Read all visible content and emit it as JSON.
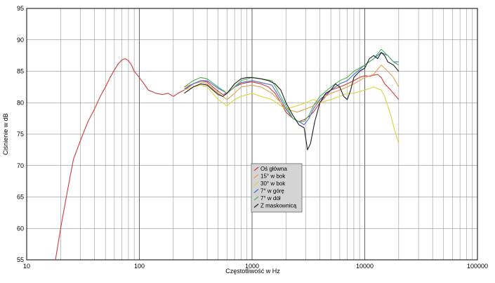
{
  "chart_data": {
    "type": "line",
    "xlabel": "Częstotliwość w Hz",
    "ylabel": "Ciśnienie w dB",
    "x_scale": "log",
    "xlim": [
      10,
      100000
    ],
    "ylim": [
      55,
      95
    ],
    "grid": true,
    "legend_placement": "center",
    "x_tick_labels": [
      "10",
      "100",
      "1000",
      "10000",
      "100000"
    ],
    "x_tick_values": [
      10,
      100,
      1000,
      10000,
      100000
    ],
    "y_ticks": [
      55,
      60,
      65,
      70,
      75,
      80,
      85,
      90,
      95
    ],
    "series": [
      {
        "name": "Oś główna",
        "color": "#d03a3a",
        "points": [
          [
            18,
            55
          ],
          [
            20,
            60
          ],
          [
            23,
            66
          ],
          [
            26,
            71
          ],
          [
            30,
            74
          ],
          [
            35,
            77
          ],
          [
            40,
            79
          ],
          [
            45,
            81
          ],
          [
            50,
            82.5
          ],
          [
            55,
            84
          ],
          [
            60,
            85.2
          ],
          [
            65,
            86.2
          ],
          [
            70,
            86.8
          ],
          [
            75,
            87
          ],
          [
            80,
            86.7
          ],
          [
            85,
            86
          ],
          [
            90,
            85
          ],
          [
            95,
            84.5
          ],
          [
            100,
            84
          ],
          [
            110,
            83
          ],
          [
            120,
            82
          ],
          [
            140,
            81.5
          ],
          [
            160,
            81.3
          ],
          [
            180,
            81.5
          ],
          [
            200,
            81
          ],
          [
            220,
            81.5
          ],
          [
            250,
            82
          ],
          [
            300,
            83
          ],
          [
            350,
            83.5
          ],
          [
            400,
            83.3
          ],
          [
            450,
            82.5
          ],
          [
            500,
            81.8
          ],
          [
            550,
            81.3
          ],
          [
            600,
            81.5
          ],
          [
            700,
            82.5
          ],
          [
            800,
            83
          ],
          [
            900,
            83.2
          ],
          [
            1000,
            83.3
          ],
          [
            1200,
            83
          ],
          [
            1400,
            82.5
          ],
          [
            1600,
            81.5
          ],
          [
            1800,
            80
          ],
          [
            2000,
            78.5
          ],
          [
            2300,
            77.5
          ],
          [
            2600,
            77
          ],
          [
            2900,
            77.3
          ],
          [
            3200,
            77.8
          ],
          [
            3500,
            78.5
          ],
          [
            4000,
            80
          ],
          [
            4500,
            81
          ],
          [
            5000,
            82
          ],
          [
            6000,
            82.5
          ],
          [
            7000,
            83
          ],
          [
            8000,
            83.5
          ],
          [
            9000,
            84
          ],
          [
            10000,
            84.3
          ],
          [
            11000,
            84.2
          ],
          [
            12000,
            84.4
          ],
          [
            13000,
            84.5
          ],
          [
            14000,
            84
          ],
          [
            15000,
            83
          ],
          [
            17000,
            82
          ],
          [
            20000,
            80.5
          ]
        ]
      },
      {
        "name": "15° w bok",
        "color": "#e8a050",
        "points": [
          [
            250,
            82.5
          ],
          [
            300,
            83
          ],
          [
            350,
            83.3
          ],
          [
            400,
            83
          ],
          [
            500,
            81.5
          ],
          [
            600,
            80.5
          ],
          [
            700,
            81.5
          ],
          [
            800,
            82.5
          ],
          [
            1000,
            82.8
          ],
          [
            1200,
            82.5
          ],
          [
            1500,
            81.5
          ],
          [
            1800,
            80
          ],
          [
            2000,
            79
          ],
          [
            2500,
            78.5
          ],
          [
            3000,
            79
          ],
          [
            3500,
            79.5
          ],
          [
            4000,
            80.5
          ],
          [
            5000,
            81.5
          ],
          [
            6000,
            82
          ],
          [
            7000,
            82.5
          ],
          [
            8000,
            83
          ],
          [
            10000,
            84
          ],
          [
            12000,
            84.5
          ],
          [
            14000,
            86
          ],
          [
            16000,
            85
          ],
          [
            18000,
            84
          ],
          [
            20000,
            82.5
          ]
        ]
      },
      {
        "name": "30° w bok",
        "color": "#d8d840",
        "points": [
          [
            250,
            82
          ],
          [
            300,
            82.5
          ],
          [
            350,
            82.8
          ],
          [
            400,
            82.5
          ],
          [
            500,
            80.5
          ],
          [
            600,
            79.5
          ],
          [
            700,
            80.5
          ],
          [
            800,
            81
          ],
          [
            1000,
            81.5
          ],
          [
            1200,
            81
          ],
          [
            1500,
            80.5
          ],
          [
            1800,
            79.5
          ],
          [
            2000,
            79
          ],
          [
            2500,
            79.5
          ],
          [
            3000,
            80
          ],
          [
            3500,
            80.5
          ],
          [
            4000,
            80
          ],
          [
            5000,
            80.5
          ],
          [
            6000,
            81
          ],
          [
            7000,
            81.5
          ],
          [
            8000,
            81.5
          ],
          [
            10000,
            82
          ],
          [
            12000,
            82.5
          ],
          [
            14000,
            82
          ],
          [
            15000,
            81
          ],
          [
            17000,
            78
          ],
          [
            18500,
            75.5
          ],
          [
            20000,
            73.5
          ]
        ]
      },
      {
        "name": "7° w górę",
        "color": "#4a6fd0",
        "points": [
          [
            250,
            82.2
          ],
          [
            300,
            83
          ],
          [
            350,
            83.5
          ],
          [
            400,
            83.5
          ],
          [
            500,
            82.3
          ],
          [
            600,
            81.5
          ],
          [
            700,
            82.5
          ],
          [
            800,
            83.2
          ],
          [
            1000,
            83.5
          ],
          [
            1200,
            83.2
          ],
          [
            1500,
            82.8
          ],
          [
            1800,
            80.5
          ],
          [
            2000,
            79
          ],
          [
            2300,
            77.5
          ],
          [
            2600,
            77
          ],
          [
            2900,
            76.5
          ],
          [
            3200,
            77.5
          ],
          [
            3500,
            79
          ],
          [
            4000,
            80.5
          ],
          [
            5000,
            82
          ],
          [
            6000,
            83
          ],
          [
            7000,
            83.5
          ],
          [
            8000,
            84.5
          ],
          [
            10000,
            86
          ],
          [
            12000,
            87
          ],
          [
            14000,
            88
          ],
          [
            16000,
            87.5
          ],
          [
            18000,
            86.5
          ],
          [
            20000,
            86.5
          ]
        ]
      },
      {
        "name": "7° w dół",
        "color": "#50b050",
        "points": [
          [
            250,
            82.5
          ],
          [
            300,
            83.5
          ],
          [
            350,
            84
          ],
          [
            400,
            83.8
          ],
          [
            500,
            82.5
          ],
          [
            600,
            81.5
          ],
          [
            700,
            82.5
          ],
          [
            800,
            83.5
          ],
          [
            1000,
            84
          ],
          [
            1200,
            83.8
          ],
          [
            1500,
            83.5
          ],
          [
            1800,
            81
          ],
          [
            2000,
            79.5
          ],
          [
            2300,
            77.5
          ],
          [
            2600,
            77
          ],
          [
            2900,
            77
          ],
          [
            3200,
            78
          ],
          [
            3500,
            79.5
          ],
          [
            4000,
            81
          ],
          [
            5000,
            82.5
          ],
          [
            6000,
            83.5
          ],
          [
            7000,
            84
          ],
          [
            8000,
            85
          ],
          [
            10000,
            86
          ],
          [
            12000,
            87
          ],
          [
            14000,
            88.5
          ],
          [
            16000,
            87.5
          ],
          [
            18000,
            86.5
          ],
          [
            20000,
            86
          ]
        ]
      },
      {
        "name": "Z maskownicą",
        "color": "#202020",
        "points": [
          [
            250,
            81.5
          ],
          [
            300,
            82.5
          ],
          [
            350,
            83
          ],
          [
            400,
            82.8
          ],
          [
            450,
            82
          ],
          [
            500,
            81.3
          ],
          [
            550,
            81
          ],
          [
            600,
            81.5
          ],
          [
            700,
            83
          ],
          [
            800,
            83.8
          ],
          [
            900,
            84
          ],
          [
            1000,
            84
          ],
          [
            1200,
            83.8
          ],
          [
            1400,
            83.5
          ],
          [
            1600,
            83
          ],
          [
            1800,
            82
          ],
          [
            2000,
            80
          ],
          [
            2300,
            78
          ],
          [
            2600,
            76.5
          ],
          [
            2900,
            76
          ],
          [
            3100,
            72.5
          ],
          [
            3300,
            73.5
          ],
          [
            3600,
            77
          ],
          [
            4000,
            80
          ],
          [
            4500,
            81.5
          ],
          [
            5000,
            82
          ],
          [
            5500,
            83
          ],
          [
            6000,
            82.5
          ],
          [
            6500,
            81
          ],
          [
            7000,
            80.5
          ],
          [
            7500,
            82
          ],
          [
            8000,
            84
          ],
          [
            9000,
            85
          ],
          [
            10000,
            85.5
          ],
          [
            11000,
            87
          ],
          [
            12000,
            87.5
          ],
          [
            13000,
            87
          ],
          [
            14000,
            88
          ],
          [
            15000,
            87.5
          ],
          [
            16000,
            86.5
          ],
          [
            18000,
            86
          ],
          [
            20000,
            85
          ]
        ]
      }
    ]
  }
}
